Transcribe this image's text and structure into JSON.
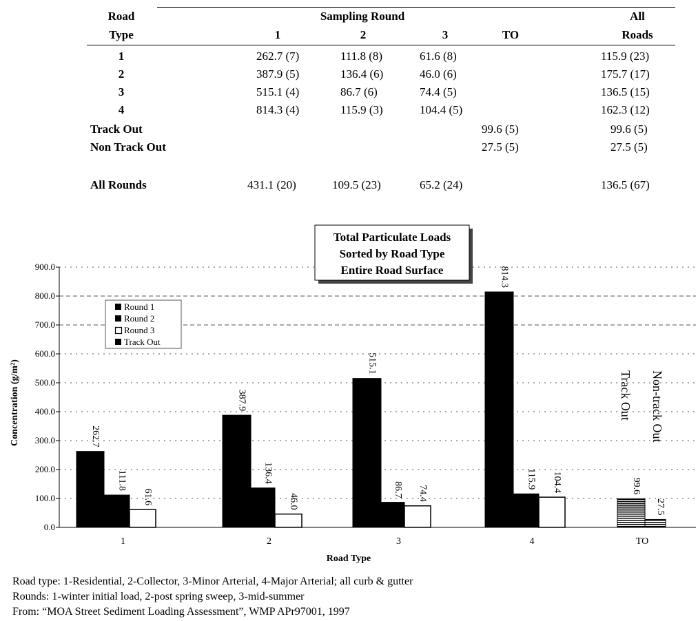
{
  "table": {
    "header": {
      "road_type_line1": "Road",
      "road_type_line2": "Type",
      "sampling_round": "Sampling Round",
      "col_round1": "1",
      "col_round2": "2",
      "col_round3": "3",
      "col_to": "TO",
      "all_roads_line1": "All",
      "all_roads_line2": "Roads"
    },
    "rows": [
      {
        "label": "1",
        "r1": "262.7 (7)",
        "r2": "111.8 (8)",
        "r3": "61.6 (8)",
        "to": "",
        "all": "115.9 (23)"
      },
      {
        "label": "2",
        "r1": "387.9 (5)",
        "r2": "136.4 (6)",
        "r3": "46.0 (6)",
        "to": "",
        "all": "175.7 (17)"
      },
      {
        "label": "3",
        "r1": "515.1 (4)",
        "r2": "86.7 (6)",
        "r3": "74.4 (5)",
        "to": "",
        "all": "136.5 (15)"
      },
      {
        "label": "4",
        "r1": "814.3 (4)",
        "r2": "115.9 (3)",
        "r3": "104.4 (5)",
        "to": "",
        "all": "162.3 (12)"
      },
      {
        "label": "Track Out",
        "r1": "",
        "r2": "",
        "r3": "",
        "to": "99.6 (5)",
        "all": "99.6 (5)"
      },
      {
        "label": "Non Track Out",
        "r1": "",
        "r2": "",
        "r3": "",
        "to": "27.5 (5)",
        "all": "27.5 (5)"
      },
      {
        "label": "All Rounds",
        "r1": "431.1 (20)",
        "r2": "109.5 (23)",
        "r3": "65.2 (24)",
        "to": "",
        "all": "136.5 (67)"
      }
    ]
  },
  "chart_data": {
    "type": "bar",
    "title_lines": [
      "Total Particulate Loads",
      "Sorted by Road Type",
      "Entire Road Surface"
    ],
    "xlabel": "Road Type",
    "ylabel": "Concentration (g/m²)",
    "ylim": [
      0,
      900
    ],
    "yticks": [
      "0.0",
      "100.0",
      "200.0",
      "300.0",
      "400.0",
      "500.0",
      "600.0",
      "700.0",
      "800.0",
      "900.0"
    ],
    "ytick_values": [
      0,
      100,
      200,
      300,
      400,
      500,
      600,
      700,
      800,
      900
    ],
    "categories": [
      "1",
      "2",
      "3",
      "4"
    ],
    "series": [
      {
        "name": "Round 1",
        "values": [
          262.7,
          387.9,
          515.1,
          814.3
        ],
        "labels": [
          "262.7",
          "387.9",
          "515.1",
          "814.3"
        ],
        "color": "#000000"
      },
      {
        "name": "Round 2",
        "values": [
          111.8,
          136.4,
          86.7,
          115.9
        ],
        "labels": [
          "111.8",
          "136.4",
          "86.7",
          "115.9"
        ],
        "color": "#000000"
      },
      {
        "name": "Round 3",
        "values": [
          61.6,
          46.0,
          74.4,
          104.4
        ],
        "labels": [
          "61.6",
          "46.0",
          "74.4",
          "104.4"
        ],
        "color": "#ffffff"
      }
    ],
    "track_out": {
      "category": "TO",
      "legend_name": "Track Out",
      "values": [
        99.6,
        27.5
      ],
      "labels": [
        "99.6",
        "27.5"
      ],
      "annotations": [
        "Track Out",
        "Non-track Out"
      ]
    },
    "legend_position": "upper-left",
    "grid": "horizontal-dashed"
  },
  "notes": [
    "Road type:  1-Residential, 2-Collector, 3-Minor Arterial, 4-Major Arterial; all curb & gutter",
    "Rounds:  1-winter initial load, 2-post spring sweep, 3-mid-summer",
    "From: “MOA Street Sediment Loading Assessment”, WMP APr97001, 1997"
  ]
}
